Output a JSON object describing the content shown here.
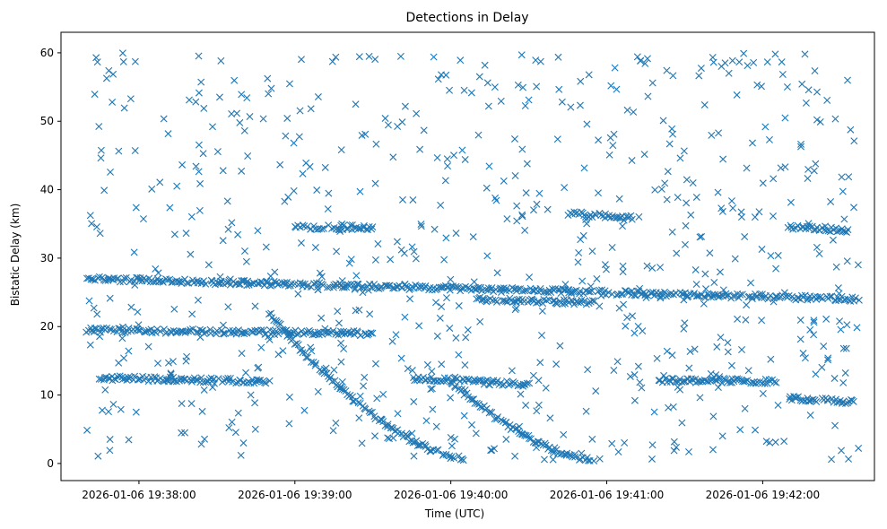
{
  "chart_data": {
    "type": "scatter",
    "title": "Detections in Delay",
    "xlabel": "Time (UTC)",
    "ylabel": "Bistatic Delay (km)",
    "marker": "x",
    "color": "#1f77b4",
    "grid": false,
    "legend": "none",
    "xlim": [
      "2026-01-06 19:37:30",
      "2026-01-06 19:42:43"
    ],
    "ylim": [
      -2.5,
      63
    ],
    "xticks": [
      "2026-01-06 19:38:00",
      "2026-01-06 19:39:00",
      "2026-01-06 19:40:00",
      "2026-01-06 19:41:00",
      "2026-01-06 19:42:00"
    ],
    "yticks": [
      "0",
      "10",
      "20",
      "30",
      "40",
      "50",
      "60"
    ],
    "x_start": "2026-01-06 19:37:40",
    "x_end": "2026-01-06 19:42:37",
    "tracks": [
      {
        "t0": "2026-01-06 19:37:40",
        "t1": "2026-01-06 19:42:37",
        "kind": "line",
        "y0": 27.0,
        "y1": 24.0
      },
      {
        "t0": "2026-01-06 19:37:40",
        "t1": "2026-01-06 19:39:30",
        "kind": "line",
        "y0": 19.5,
        "y1": 19.0
      },
      {
        "t0": "2026-01-06 19:37:45",
        "t1": "2026-01-06 19:38:50",
        "kind": "line",
        "y0": 12.5,
        "y1": 12.0
      },
      {
        "t0": "2026-01-06 19:38:50",
        "t1": "2026-01-06 19:40:05",
        "kind": "curve",
        "y0": 22.0,
        "y1": 0.8
      },
      {
        "t0": "2026-01-06 19:39:00",
        "t1": "2026-01-06 19:39:30",
        "kind": "line",
        "y0": 34.5,
        "y1": 34.5
      },
      {
        "t0": "2026-01-06 19:39:45",
        "t1": "2026-01-06 19:40:30",
        "kind": "line",
        "y0": 12.5,
        "y1": 11.5
      },
      {
        "t0": "2026-01-06 19:40:00",
        "t1": "2026-01-06 19:40:55",
        "kind": "curve",
        "y0": 12.0,
        "y1": 0.5
      },
      {
        "t0": "2026-01-06 19:40:10",
        "t1": "2026-01-06 19:40:55",
        "kind": "line",
        "y0": 24.0,
        "y1": 23.5
      },
      {
        "t0": "2026-01-06 19:40:45",
        "t1": "2026-01-06 19:41:10",
        "kind": "line",
        "y0": 36.5,
        "y1": 36.0
      },
      {
        "t0": "2026-01-06 19:41:20",
        "t1": "2026-01-06 19:42:05",
        "kind": "line",
        "y0": 12.2,
        "y1": 12.0
      },
      {
        "t0": "2026-01-06 19:42:10",
        "t1": "2026-01-06 19:42:35",
        "kind": "line",
        "y0": 34.5,
        "y1": 34.0
      },
      {
        "t0": "2026-01-06 19:42:10",
        "t1": "2026-01-06 19:42:35",
        "kind": "line",
        "y0": 9.5,
        "y1": 9.0
      }
    ],
    "noise_points": 700,
    "y_range": [
      0.5,
      60
    ]
  }
}
